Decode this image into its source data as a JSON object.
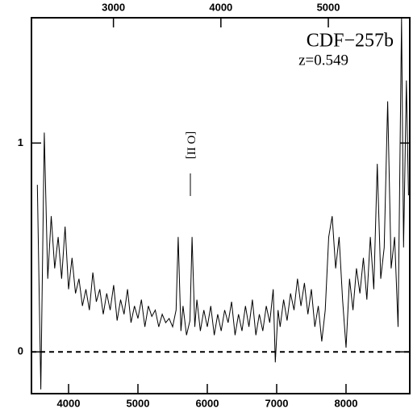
{
  "chart_data": {
    "type": "line",
    "title": "CDF−257b",
    "subtitle": "z=0.549",
    "annotation": "[O II]",
    "xlim": [
      3465,
      8919
    ],
    "xticks": [
      4000,
      5000,
      6000,
      7000,
      8000
    ],
    "x2lim": [
      2237,
      5758
    ],
    "x2ticks": [
      3000,
      4000,
      5000
    ],
    "ylim": [
      -0.2,
      1.6
    ],
    "yticks": [
      0,
      1
    ],
    "reference_line": 0,
    "color": "#000000",
    "x": [
      3550,
      3600,
      3650,
      3700,
      3750,
      3800,
      3850,
      3900,
      3950,
      4000,
      4050,
      4100,
      4150,
      4200,
      4250,
      4300,
      4350,
      4400,
      4450,
      4500,
      4550,
      4600,
      4650,
      4700,
      4750,
      4800,
      4850,
      4900,
      4950,
      5000,
      5050,
      5100,
      5150,
      5200,
      5250,
      5300,
      5350,
      5400,
      5450,
      5500,
      5550,
      5580,
      5620,
      5650,
      5700,
      5750,
      5780,
      5820,
      5850,
      5900,
      5950,
      6000,
      6050,
      6100,
      6150,
      6200,
      6250,
      6300,
      6350,
      6400,
      6450,
      6500,
      6550,
      6600,
      6650,
      6700,
      6750,
      6800,
      6850,
      6900,
      6950,
      6980,
      7020,
      7050,
      7100,
      7150,
      7200,
      7250,
      7300,
      7350,
      7400,
      7450,
      7500,
      7550,
      7600,
      7650,
      7700,
      7750,
      7800,
      7850,
      7900,
      7950,
      8000,
      8050,
      8100,
      8150,
      8200,
      8250,
      8300,
      8350,
      8400,
      8450,
      8500,
      8550,
      8600,
      8650,
      8700,
      8750,
      8800,
      8830,
      8870,
      8900
    ],
    "values": [
      0.8,
      -0.18,
      1.05,
      0.35,
      0.65,
      0.4,
      0.55,
      0.35,
      0.6,
      0.3,
      0.45,
      0.28,
      0.35,
      0.22,
      0.3,
      0.2,
      0.38,
      0.24,
      0.3,
      0.18,
      0.28,
      0.2,
      0.32,
      0.15,
      0.25,
      0.18,
      0.3,
      0.14,
      0.22,
      0.16,
      0.25,
      0.12,
      0.22,
      0.17,
      0.2,
      0.12,
      0.18,
      0.14,
      0.16,
      0.12,
      0.2,
      0.55,
      0.1,
      0.22,
      0.08,
      0.15,
      0.55,
      0.12,
      0.25,
      0.1,
      0.2,
      0.12,
      0.22,
      0.08,
      0.18,
      0.1,
      0.2,
      0.14,
      0.24,
      0.08,
      0.18,
      0.1,
      0.22,
      0.12,
      0.25,
      0.08,
      0.18,
      0.1,
      0.22,
      0.14,
      0.3,
      -0.05,
      0.2,
      0.12,
      0.25,
      0.15,
      0.28,
      0.2,
      0.35,
      0.22,
      0.33,
      0.18,
      0.3,
      0.12,
      0.22,
      0.05,
      0.2,
      0.55,
      0.65,
      0.4,
      0.55,
      0.25,
      0.02,
      0.35,
      0.2,
      0.4,
      0.28,
      0.45,
      0.25,
      0.55,
      0.3,
      0.9,
      0.35,
      0.5,
      1.2,
      0.4,
      0.55,
      0.12,
      1.6,
      0.5,
      1.3,
      0.75
    ]
  }
}
